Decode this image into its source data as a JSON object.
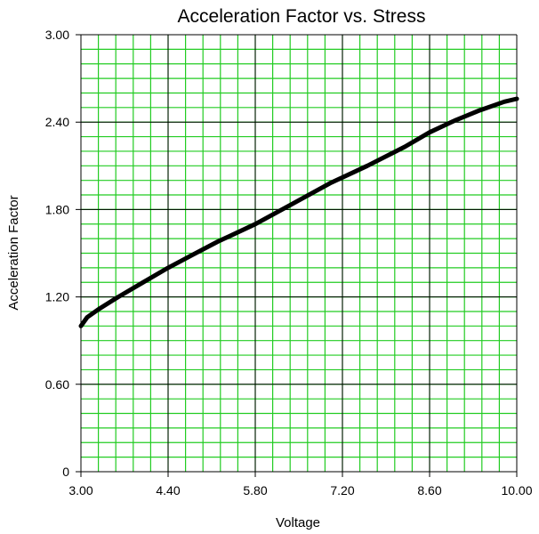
{
  "chart_data": {
    "type": "line",
    "title": "Acceleration Factor vs. Stress",
    "xlabel": "Voltage",
    "ylabel": "Acceleration Factor",
    "xlim": [
      3.0,
      10.0
    ],
    "ylim": [
      0,
      3.0
    ],
    "x_ticks": [
      "3.00",
      "4.40",
      "5.80",
      "7.20",
      "8.60",
      "10.00"
    ],
    "y_ticks": [
      "0",
      "0.60",
      "1.20",
      "1.80",
      "2.40",
      "3.00"
    ],
    "grid": true,
    "major_grid_color": "#000000",
    "minor_grid_color": "#22cc22",
    "line_color": "#000000",
    "series": [
      {
        "x": [
          3.0,
          3.1,
          3.3,
          3.6,
          4.0,
          4.4,
          4.8,
          5.2,
          5.8,
          6.4,
          7.0,
          7.6,
          8.2,
          8.6,
          9.0,
          9.4,
          9.8,
          10.0
        ],
        "y": [
          1.0,
          1.06,
          1.12,
          1.2,
          1.3,
          1.4,
          1.49,
          1.58,
          1.7,
          1.84,
          1.98,
          2.1,
          2.23,
          2.33,
          2.41,
          2.48,
          2.54,
          2.56
        ]
      }
    ]
  }
}
